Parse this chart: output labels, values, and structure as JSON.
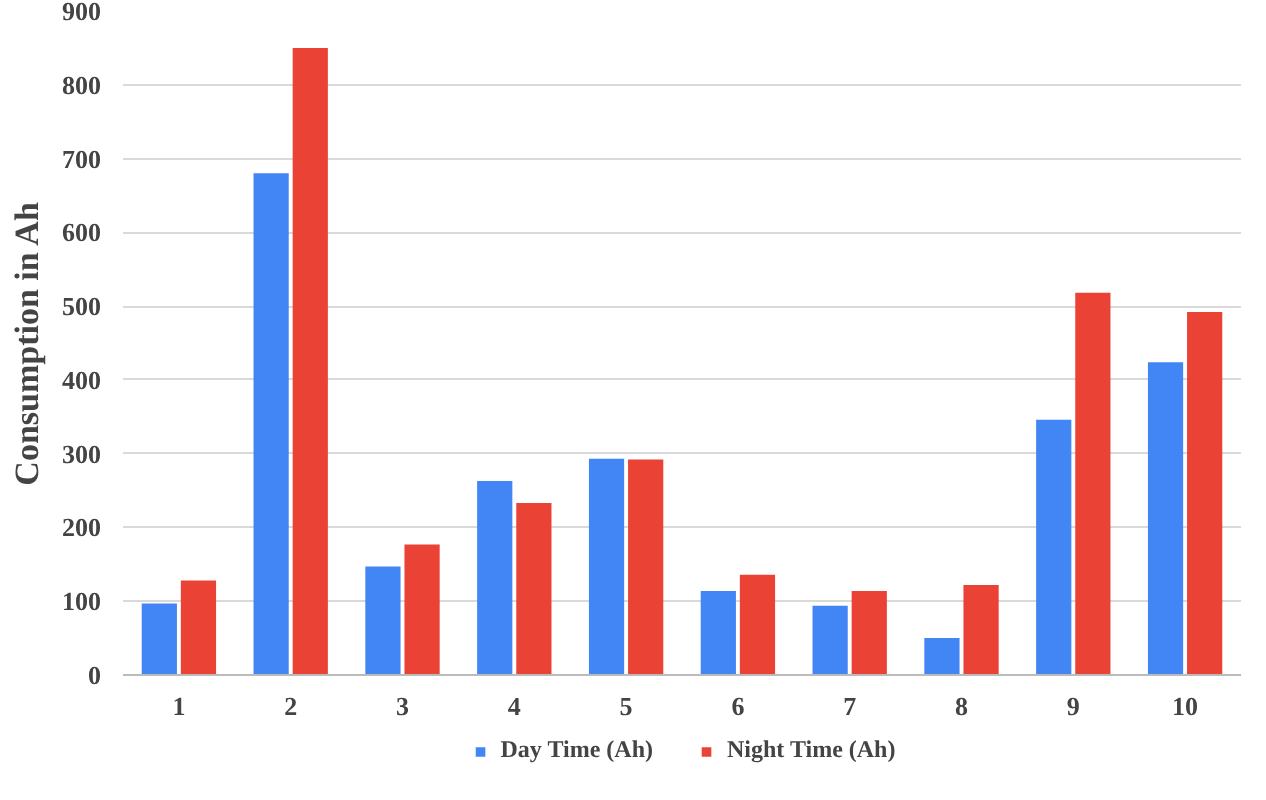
{
  "chart_data": {
    "type": "bar",
    "ylabel": "Consumption in Ah",
    "categories": [
      "1",
      "2",
      "3",
      "4",
      "5",
      "6",
      "7",
      "8",
      "9",
      "10"
    ],
    "series": [
      {
        "name": "Day Time (Ah)",
        "color": "#4285f4",
        "values": [
          97,
          680,
          147,
          263,
          293,
          114,
          94,
          50,
          346,
          424
        ]
      },
      {
        "name": "Night Time (Ah)",
        "color": "#ea4335",
        "values": [
          128,
          850,
          177,
          233,
          292,
          136,
          114,
          122,
          518,
          492
        ]
      }
    ],
    "ylim": [
      0,
      900
    ],
    "yticks": [
      0,
      100,
      200,
      300,
      400,
      500,
      600,
      700,
      800,
      900
    ],
    "grid": "y",
    "legend": "bottom"
  }
}
